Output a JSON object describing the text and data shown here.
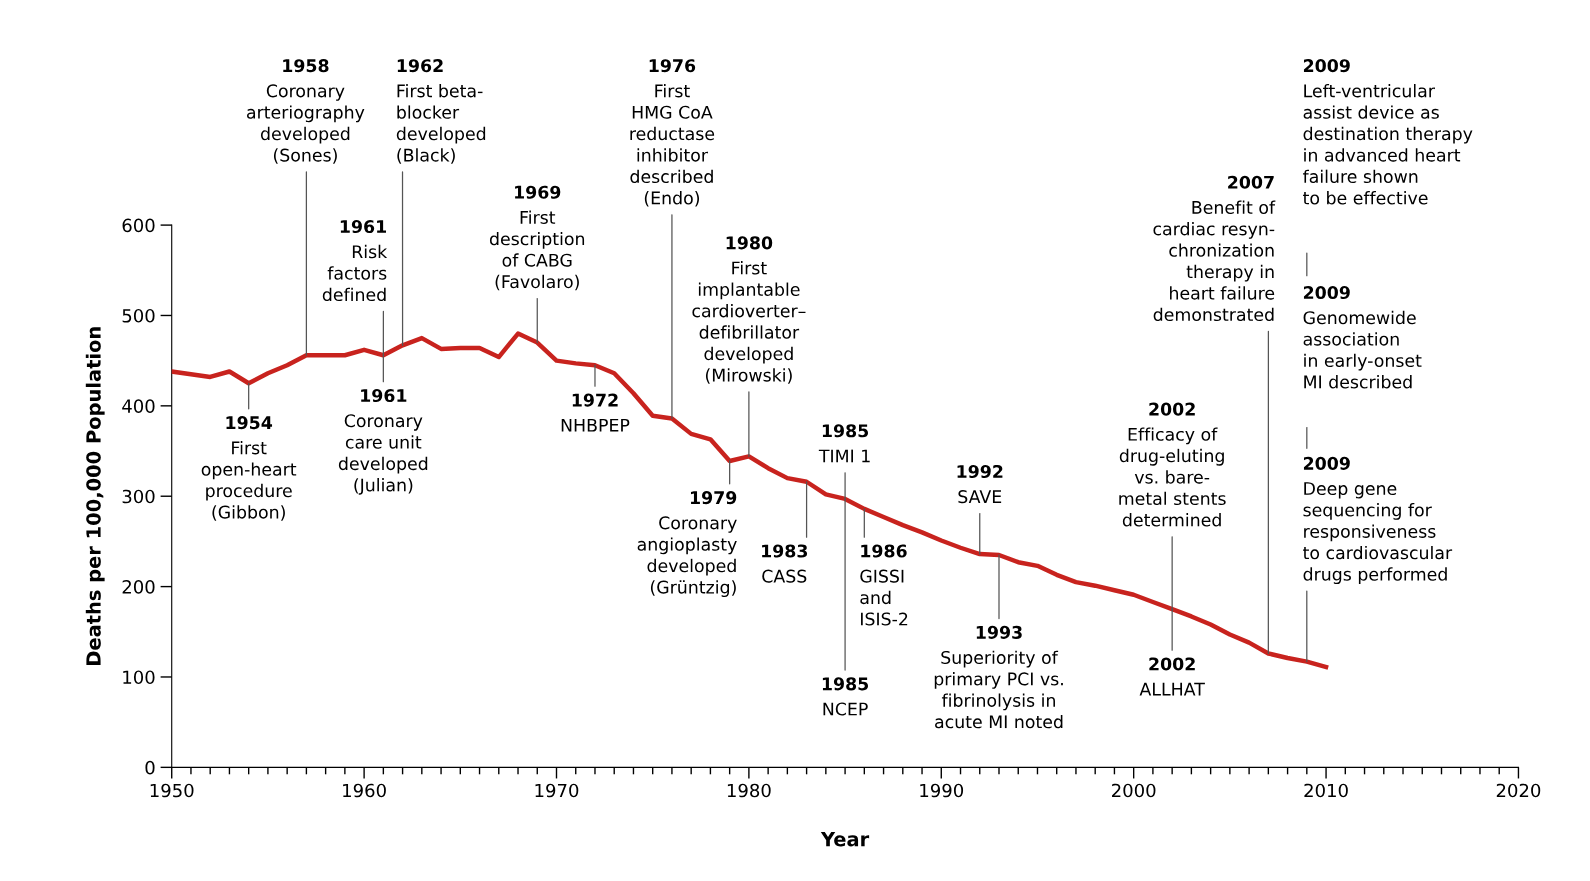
{
  "chart_data": {
    "type": "line",
    "xlabel": "Year",
    "ylabel": "Deaths per 100,000 Population",
    "x": [
      1950,
      1951,
      1952,
      1953,
      1954,
      1955,
      1956,
      1957,
      1958,
      1959,
      1960,
      1961,
      1962,
      1963,
      1964,
      1965,
      1966,
      1967,
      1968,
      1969,
      1970,
      1971,
      1972,
      1973,
      1974,
      1975,
      1976,
      1977,
      1978,
      1979,
      1980,
      1981,
      1982,
      1983,
      1984,
      1985,
      1986,
      1987,
      1988,
      1989,
      1990,
      1991,
      1992,
      1993,
      1994,
      1995,
      1996,
      1997,
      1998,
      1999,
      2000,
      2001,
      2002,
      2003,
      2004,
      2005,
      2006,
      2007,
      2008,
      2009,
      2010
    ],
    "series": [
      {
        "color": "#c8231e",
        "values": [
          438,
          435,
          432,
          438,
          425,
          436,
          445,
          456,
          456,
          456,
          462,
          456,
          467,
          475,
          463,
          464,
          464,
          454,
          480,
          470,
          450,
          447,
          445,
          436,
          414,
          389,
          386,
          369,
          363,
          339,
          344,
          331,
          320,
          316,
          302,
          297,
          286,
          277,
          268,
          260,
          251,
          243,
          236,
          235,
          227,
          223,
          213,
          205,
          201,
          196,
          191,
          183,
          175,
          167,
          158,
          147,
          138,
          126,
          121,
          117,
          111
        ]
      }
    ],
    "xlim": [
      1950,
      2020
    ],
    "ylim": [
      0,
      600
    ],
    "xticks": [
      1950,
      {
        "value": 1951,
        "label": null
      },
      {
        "value": 1952,
        "label": null
      },
      {
        "value": 1953,
        "label": null
      },
      {
        "value": 1954,
        "label": null
      },
      {
        "value": 1955,
        "label": null
      },
      {
        "value": 1956,
        "label": null
      },
      {
        "value": 1957,
        "label": null
      },
      {
        "value": 1958,
        "label": null
      },
      {
        "value": 1959,
        "label": null
      },
      1960,
      {
        "value": 1961,
        "label": null
      },
      {
        "value": 1962,
        "label": null
      },
      {
        "value": 1963,
        "label": null
      },
      {
        "value": 1964,
        "label": null
      },
      {
        "value": 1965,
        "label": null
      },
      {
        "value": 1966,
        "label": null
      },
      {
        "value": 1967,
        "label": null
      },
      {
        "value": 1968,
        "label": null
      },
      {
        "value": 1969,
        "label": null
      },
      1970,
      {
        "value": 1971,
        "label": null
      },
      {
        "value": 1972,
        "label": null
      },
      {
        "value": 1973,
        "label": null
      },
      {
        "value": 1974,
        "label": null
      },
      {
        "value": 1975,
        "label": null
      },
      {
        "value": 1976,
        "label": null
      },
      {
        "value": 1977,
        "label": null
      },
      {
        "value": 1978,
        "label": null
      },
      {
        "value": 1979,
        "label": null
      },
      1980,
      {
        "value": 1981,
        "label": null
      },
      {
        "value": 1982,
        "label": null
      },
      {
        "value": 1983,
        "label": null
      },
      {
        "value": 1984,
        "label": null
      },
      {
        "value": 1985,
        "label": null
      },
      {
        "value": 1986,
        "label": null
      },
      {
        "value": 1987,
        "label": null
      },
      {
        "value": 1988,
        "label": null
      },
      {
        "value": 1989,
        "label": null
      },
      1990,
      {
        "value": 1991,
        "label": null
      },
      {
        "value": 1992,
        "label": null
      },
      {
        "value": 1993,
        "label": null
      },
      {
        "value": 1994,
        "label": null
      },
      {
        "value": 1995,
        "label": null
      },
      {
        "value": 1996,
        "label": null
      },
      {
        "value": 1997,
        "label": null
      },
      {
        "value": 1998,
        "label": null
      },
      {
        "value": 1999,
        "label": null
      },
      2000,
      {
        "value": 2001,
        "label": null
      },
      {
        "value": 2002,
        "label": null
      },
      {
        "value": 2003,
        "label": null
      },
      {
        "value": 2004,
        "label": null
      },
      {
        "value": 2005,
        "label": null
      },
      {
        "value": 2006,
        "label": null
      },
      {
        "value": 2007,
        "label": null
      },
      {
        "value": 2008,
        "label": null
      },
      {
        "value": 2009,
        "label": null
      },
      2010,
      {
        "value": 2011,
        "label": null
      },
      {
        "value": 2012,
        "label": null
      },
      {
        "value": 2013,
        "label": null
      },
      {
        "value": 2014,
        "label": null
      },
      {
        "value": 2015,
        "label": null
      },
      {
        "value": 2016,
        "label": null
      },
      {
        "value": 2017,
        "label": null
      },
      {
        "value": 2018,
        "label": null
      },
      {
        "value": 2019,
        "label": null
      },
      2020
    ],
    "yticks": [
      0,
      100,
      200,
      300,
      400,
      500,
      600
    ],
    "grid": false,
    "marker": "none",
    "line_style": "solid",
    "annotations": [
      {
        "text": "1954\nFirst\nopen-heart\nprocedure\n(Gibbon)",
        "x": 1954,
        "y": 425
      },
      {
        "text": "1958\nCoronary\narteriography\ndeveloped\n(Sones)",
        "x": 1957,
        "y": 456
      },
      {
        "text": "1961\nRisk\nfactors\ndefined",
        "x": 1961,
        "y": 456
      },
      {
        "text": "1961\nCoronary\ncare unit\ndeveloped\n(Julian)",
        "x": 1961,
        "y": 456
      },
      {
        "text": "1962\nFirst beta-\nblocker\ndeveloped\n(Black)",
        "x": 1962,
        "y": 467
      },
      {
        "text": "1969\nFirst\ndescription\nof CABG\n(Favolaro)",
        "x": 1969,
        "y": 470
      },
      {
        "text": "1972\nNHBPEP",
        "x": 1972,
        "y": 445
      },
      {
        "text": "1976\nFirst\nHMG CoA\nreductase\ninhibitor\ndescribed\n(Endo)",
        "x": 1976,
        "y": 386
      },
      {
        "text": "1980\nFirst\nimplantable\ncardioverter–\ndefibrillator\ndeveloped\n(Mirowski)",
        "x": 1980,
        "y": 344
      },
      {
        "text": "1979\nCoronary\nangioplasty\ndeveloped\n(Grüntzig)",
        "x": 1979,
        "y": 339
      },
      {
        "text": "1983\nCASS",
        "x": 1983,
        "y": 316
      },
      {
        "text": "1985\nTIMI 1",
        "x": 1985,
        "y": 297
      },
      {
        "text": "1985\nNCEP",
        "x": 1985,
        "y": 297
      },
      {
        "text": "1986\nGISSI\nand\nISIS-2",
        "x": 1986,
        "y": 286
      },
      {
        "text": "1992\nSAVE",
        "x": 1992,
        "y": 236
      },
      {
        "text": "1993\nSuperiority of\nprimary PCI vs.\nfibrinolysis in\nacute MI noted",
        "x": 1993,
        "y": 235
      },
      {
        "text": "2002\nEfficacy of\ndrug-eluting\nvs. bare-\nmetal stents\ndetermined",
        "x": 2002,
        "y": 175
      },
      {
        "text": "2002\nALLHAT",
        "x": 2002,
        "y": 175
      },
      {
        "text": "2007\nBenefit of\ncardiac resyn-\nchronization\ntherapy in\nheart failure\ndemonstrated",
        "x": 2007,
        "y": 126
      },
      "2009\nLeft-ventricular\nassist device as\ndestination therapy\nin advanced heart\nfailure shown\nto be effective",
      "2009\nGenomewide\nassociation\nin early-onset\nMI described",
      {
        "text": "2009\nDeep gene\nsequencing for\nresponsiveness\nto cardiovascular\ndrugs performed",
        "x": 2009,
        "y": 117
      }
    ]
  }
}
